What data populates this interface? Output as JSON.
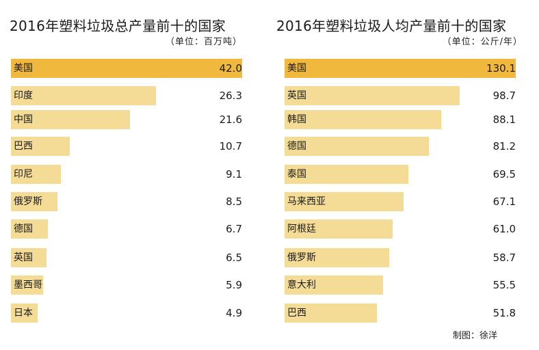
{
  "chart_data": [
    {
      "type": "bar",
      "orientation": "horizontal",
      "title": "2016年塑料垃圾总产量前十的国家",
      "unit": "（单位：百万吨）",
      "categories": [
        "美国",
        "印度",
        "中国",
        "巴西",
        "印尼",
        "俄罗斯",
        "德国",
        "英国",
        "墨西哥",
        "日本"
      ],
      "values": [
        42.0,
        26.3,
        21.6,
        10.7,
        9.1,
        8.5,
        6.7,
        6.5,
        5.9,
        4.9
      ],
      "value_labels": [
        "42.0",
        "26.3",
        "21.6",
        "10.7",
        "9.1",
        "8.5",
        "6.7",
        "6.5",
        "5.9",
        "4.9"
      ],
      "xlim": [
        0,
        42.0
      ],
      "grid": false,
      "colors": {
        "highlight": "#f0b83c",
        "bar": "#f4dc96"
      }
    },
    {
      "type": "bar",
      "orientation": "horizontal",
      "title": "2016年塑料垃圾人均产量前十的国家",
      "unit": "（单位：公斤/年）",
      "categories": [
        "美国",
        "英国",
        "韩国",
        "德国",
        "泰国",
        "马来西亚",
        "阿根廷",
        "俄罗斯",
        "意大利",
        "巴西"
      ],
      "values": [
        130.1,
        98.7,
        88.1,
        81.2,
        69.5,
        67.1,
        61.0,
        58.7,
        55.5,
        51.8
      ],
      "value_labels": [
        "130.1",
        "98.7",
        "88.1",
        "81.2",
        "69.5",
        "67.1",
        "61.0",
        "58.7",
        "55.5",
        "51.8"
      ],
      "xlim": [
        0,
        130.1
      ],
      "grid": false,
      "colors": {
        "highlight": "#f0b83c",
        "bar": "#f4dc96"
      }
    }
  ],
  "credit": "制图：徐洋"
}
